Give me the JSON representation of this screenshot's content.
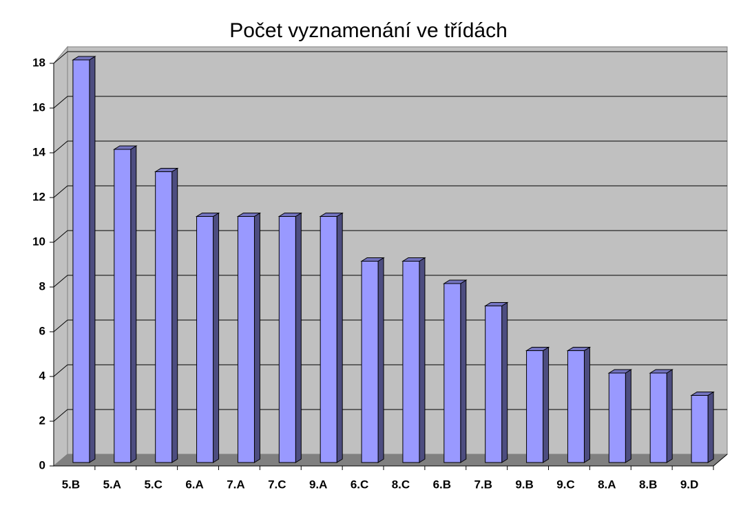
{
  "chart_data": {
    "type": "bar",
    "title": "Počet vyznamenání ve třídách",
    "categories": [
      "5.B",
      "5.A",
      "5.C",
      "6.A",
      "7.A",
      "7.C",
      "9.A",
      "6.C",
      "8.C",
      "6.B",
      "7.B",
      "9.B",
      "9.C",
      "8.A",
      "8.B",
      "9.D"
    ],
    "values": [
      18,
      14,
      13,
      11,
      11,
      11,
      11,
      9,
      9,
      8,
      7,
      5,
      5,
      4,
      4,
      3
    ],
    "color": "#9999ff",
    "ylim": [
      0,
      18
    ],
    "yticks": [
      0,
      2,
      4,
      6,
      8,
      10,
      12,
      14,
      16,
      18
    ],
    "grid": true
  }
}
